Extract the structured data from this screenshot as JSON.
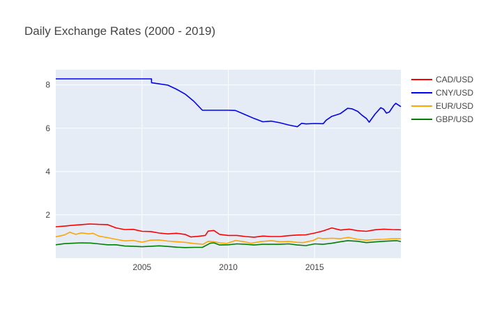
{
  "chart_data": {
    "type": "line",
    "title": "Daily Exchange Rates (2000 - 2019)",
    "xlabel": "",
    "ylabel": "",
    "xlim": [
      "2000-01-03",
      "2019-12-31"
    ],
    "ylim": [
      0.0,
      8.7
    ],
    "x_ticks": [
      {
        "value": "2005-01-01",
        "label": "2005"
      },
      {
        "value": "2010-01-01",
        "label": "2010"
      },
      {
        "value": "2015-01-01",
        "label": "2015"
      }
    ],
    "y_ticks": [
      {
        "value": 2,
        "label": "2"
      },
      {
        "value": 4,
        "label": "4"
      },
      {
        "value": 6,
        "label": "6"
      },
      {
        "value": 8,
        "label": "8"
      }
    ],
    "grid": true,
    "legend_position": "top-right",
    "plot_background": "#e5ecf6",
    "series": [
      {
        "name": "CAD/USD",
        "color": "#ff0000",
        "x": [
          "2000-01-03",
          "2000-07-01",
          "2001-01-01",
          "2001-07-01",
          "2002-01-01",
          "2002-07-01",
          "2003-01-01",
          "2003-07-01",
          "2004-01-01",
          "2004-07-01",
          "2005-01-01",
          "2005-07-01",
          "2006-01-01",
          "2006-07-01",
          "2007-01-01",
          "2007-07-01",
          "2007-11-01",
          "2008-04-01",
          "2008-09-01",
          "2008-11-01",
          "2009-03-01",
          "2009-07-01",
          "2010-01-01",
          "2010-07-01",
          "2011-01-01",
          "2011-07-01",
          "2012-01-01",
          "2012-07-01",
          "2013-01-01",
          "2013-07-01",
          "2014-01-01",
          "2014-07-01",
          "2015-01-01",
          "2015-07-01",
          "2016-01-01",
          "2016-07-01",
          "2017-01-01",
          "2017-07-01",
          "2018-01-01",
          "2018-07-01",
          "2019-01-01",
          "2019-07-01",
          "2019-12-31"
        ],
        "y": [
          1.45,
          1.48,
          1.52,
          1.55,
          1.58,
          1.56,
          1.55,
          1.4,
          1.32,
          1.33,
          1.24,
          1.23,
          1.16,
          1.12,
          1.15,
          1.1,
          0.98,
          1.01,
          1.05,
          1.25,
          1.28,
          1.1,
          1.05,
          1.05,
          1.0,
          0.97,
          1.02,
          1.0,
          1.0,
          1.04,
          1.07,
          1.08,
          1.16,
          1.26,
          1.4,
          1.3,
          1.34,
          1.27,
          1.24,
          1.31,
          1.34,
          1.32,
          1.31
        ]
      },
      {
        "name": "CNY/USD",
        "color": "#0000ff",
        "x": [
          "2000-01-03",
          "2001-01-01",
          "2002-01-01",
          "2003-01-01",
          "2004-01-01",
          "2005-01-01",
          "2005-07-20",
          "2005-07-22",
          "2006-01-01",
          "2006-07-01",
          "2007-01-01",
          "2007-07-01",
          "2008-01-01",
          "2008-07-01",
          "2009-01-01",
          "2009-07-01",
          "2010-01-01",
          "2010-06-01",
          "2010-12-01",
          "2011-07-01",
          "2012-01-01",
          "2012-07-01",
          "2013-01-01",
          "2013-07-01",
          "2014-01-01",
          "2014-04-01",
          "2014-07-01",
          "2015-01-01",
          "2015-07-01",
          "2015-09-01",
          "2016-01-01",
          "2016-07-01",
          "2016-12-01",
          "2017-03-01",
          "2017-07-01",
          "2017-10-01",
          "2018-01-01",
          "2018-03-01",
          "2018-07-01",
          "2018-11-01",
          "2019-01-01",
          "2019-03-01",
          "2019-05-01",
          "2019-08-01",
          "2019-09-15",
          "2019-12-31"
        ],
        "y": [
          8.28,
          8.28,
          8.28,
          8.28,
          8.28,
          8.28,
          8.28,
          8.1,
          8.05,
          7.99,
          7.8,
          7.58,
          7.25,
          6.83,
          6.83,
          6.83,
          6.83,
          6.82,
          6.65,
          6.45,
          6.3,
          6.33,
          6.25,
          6.15,
          6.07,
          6.23,
          6.2,
          6.22,
          6.21,
          6.37,
          6.55,
          6.68,
          6.92,
          6.9,
          6.78,
          6.6,
          6.45,
          6.28,
          6.65,
          6.95,
          6.88,
          6.7,
          6.75,
          7.05,
          7.15,
          7.0
        ]
      },
      {
        "name": "EUR/USD",
        "color": "#ffa500",
        "x": [
          "2000-01-03",
          "2000-07-01",
          "2000-10-26",
          "2001-03-01",
          "2001-07-01",
          "2001-12-01",
          "2002-03-01",
          "2002-07-01",
          "2003-01-01",
          "2003-07-01",
          "2004-01-01",
          "2004-07-01",
          "2005-01-01",
          "2005-07-01",
          "2006-01-01",
          "2006-07-01",
          "2007-01-01",
          "2007-07-01",
          "2008-01-01",
          "2008-07-15",
          "2008-11-01",
          "2009-03-01",
          "2009-07-01",
          "2009-12-01",
          "2010-06-01",
          "2010-12-01",
          "2011-05-01",
          "2011-12-01",
          "2012-07-01",
          "2013-01-01",
          "2013-07-01",
          "2014-01-01",
          "2014-05-01",
          "2014-12-01",
          "2015-03-15",
          "2015-07-01",
          "2016-01-01",
          "2016-07-01",
          "2016-12-15",
          "2017-07-01",
          "2018-01-01",
          "2018-07-01",
          "2019-01-01",
          "2019-07-01",
          "2019-12-31"
        ],
        "y": [
          0.99,
          1.07,
          1.2,
          1.1,
          1.17,
          1.12,
          1.15,
          1.02,
          0.95,
          0.87,
          0.8,
          0.82,
          0.74,
          0.83,
          0.84,
          0.79,
          0.76,
          0.73,
          0.68,
          0.64,
          0.78,
          0.76,
          0.71,
          0.68,
          0.82,
          0.76,
          0.69,
          0.77,
          0.81,
          0.76,
          0.77,
          0.73,
          0.72,
          0.82,
          0.93,
          0.9,
          0.92,
          0.9,
          0.96,
          0.87,
          0.83,
          0.86,
          0.87,
          0.9,
          0.9
        ]
      },
      {
        "name": "GBP/USD",
        "color": "#008000",
        "x": [
          "2000-01-03",
          "2000-07-01",
          "2001-01-01",
          "2001-07-01",
          "2002-01-01",
          "2002-07-01",
          "2003-01-01",
          "2003-07-01",
          "2004-01-01",
          "2004-07-01",
          "2005-01-01",
          "2005-07-01",
          "2006-01-01",
          "2006-07-01",
          "2007-01-01",
          "2007-07-01",
          "2008-01-01",
          "2008-07-01",
          "2008-12-15",
          "2009-03-01",
          "2009-07-01",
          "2010-01-01",
          "2010-07-01",
          "2011-01-01",
          "2011-07-01",
          "2012-01-01",
          "2012-07-01",
          "2013-01-01",
          "2013-07-01",
          "2014-01-01",
          "2014-07-01",
          "2015-01-01",
          "2015-07-01",
          "2016-01-01",
          "2016-07-01",
          "2016-12-01",
          "2017-07-01",
          "2018-01-01",
          "2018-07-01",
          "2019-01-01",
          "2019-07-01",
          "2019-10-01",
          "2019-12-31"
        ],
        "y": [
          0.62,
          0.67,
          0.69,
          0.71,
          0.7,
          0.66,
          0.62,
          0.62,
          0.56,
          0.55,
          0.53,
          0.55,
          0.57,
          0.54,
          0.51,
          0.49,
          0.5,
          0.5,
          0.69,
          0.71,
          0.61,
          0.62,
          0.66,
          0.64,
          0.61,
          0.64,
          0.64,
          0.64,
          0.66,
          0.61,
          0.58,
          0.66,
          0.64,
          0.69,
          0.76,
          0.81,
          0.78,
          0.72,
          0.75,
          0.78,
          0.8,
          0.81,
          0.77
        ]
      }
    ]
  }
}
